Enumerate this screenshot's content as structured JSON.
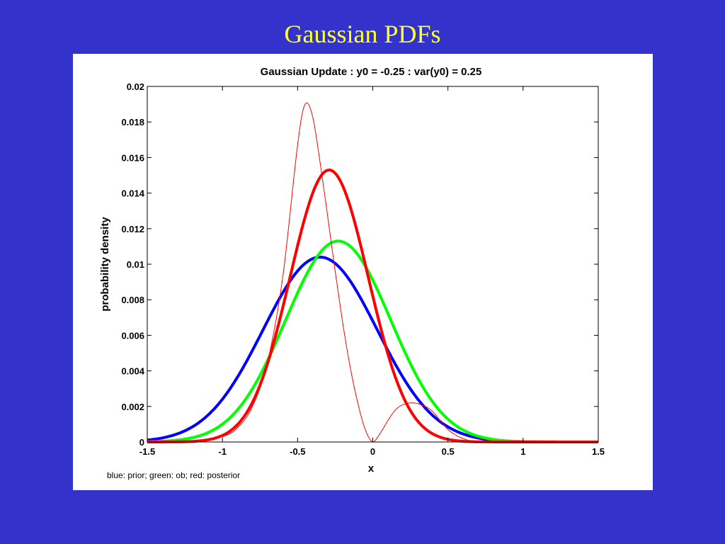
{
  "slide": {
    "title": "Gaussian PDFs"
  },
  "chart_data": {
    "type": "line",
    "title": "Gaussian Update : y0 = -0.25 : var(y0) = 0.25",
    "xlabel": "x",
    "ylabel": "probability density",
    "caption": "blue: prior; green: ob; red: posterior",
    "xlim": [
      -1.5,
      1.5
    ],
    "ylim": [
      0,
      0.02
    ],
    "x_ticks": [
      -1.5,
      -1,
      -0.5,
      0,
      0.5,
      1,
      1.5
    ],
    "x_tick_labels": [
      "-1.5",
      "-1",
      "-0.5",
      "0",
      "0.5",
      "1",
      "1.5"
    ],
    "y_ticks": [
      0,
      0.002,
      0.004,
      0.006,
      0.008,
      0.01,
      0.012,
      0.014,
      0.016,
      0.018,
      0.02
    ],
    "y_tick_labels": [
      "0",
      "0.002",
      "0.004",
      "0.006",
      "0.008",
      "0.01",
      "0.012",
      "0.014",
      "0.016",
      "0.018",
      "0.02"
    ],
    "grid": false,
    "series": [
      {
        "color": "#0000ff",
        "line": "thick",
        "gaussian": {
          "mean": -0.35,
          "sigma": 0.38,
          "peak": 0.0104
        }
      },
      {
        "color": "#00ff00",
        "line": "thick",
        "gaussian": {
          "mean": -0.23,
          "sigma": 0.35,
          "peak": 0.0113
        }
      },
      {
        "color": "#ff0000",
        "line": "thick",
        "gaussian": {
          "mean": -0.29,
          "sigma": 0.26,
          "peak": 0.0153
        }
      },
      {
        "color": "#ff0000",
        "line": "thin",
        "x": [
          -1.5,
          -1.2,
          -1.0,
          -0.9,
          -0.8,
          -0.7,
          -0.6,
          -0.5,
          -0.45,
          -0.4,
          -0.35,
          -0.3,
          -0.25,
          -0.2,
          -0.15,
          -0.1,
          -0.05,
          0.0,
          0.05,
          0.1,
          0.15,
          0.2,
          0.27,
          0.35,
          0.4,
          0.45,
          0.5,
          0.55,
          0.6,
          0.7,
          1.0,
          1.5
        ],
        "y": [
          0.0,
          0.0,
          0.0003,
          0.0008,
          0.002,
          0.0045,
          0.0092,
          0.0167,
          0.019,
          0.0183,
          0.0157,
          0.0127,
          0.0096,
          0.0067,
          0.0042,
          0.0022,
          0.0007,
          0.0,
          0.0005,
          0.0012,
          0.0018,
          0.0021,
          0.0022,
          0.002,
          0.0017,
          0.0012,
          0.0007,
          0.0004,
          0.0002,
          0.0,
          0.0,
          0.0
        ]
      }
    ]
  }
}
